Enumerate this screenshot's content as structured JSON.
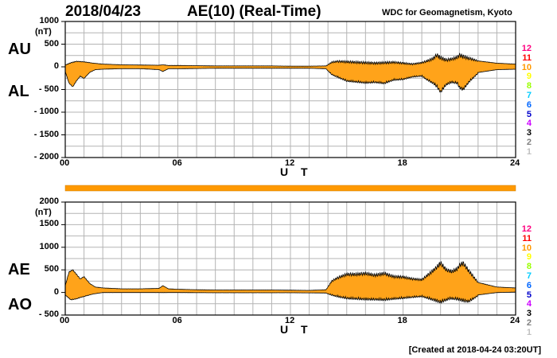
{
  "header": {
    "date": "2018/04/23",
    "title": "AE(10) (Real-Time)",
    "source": "WDC for Geomagnetism, Kyoto"
  },
  "footer": {
    "created": "[Created at 2018-04-24 03:20UT]"
  },
  "colors": {
    "fill": "#ffa31a",
    "grid": "#b4b4b4",
    "bar": "#ff9900"
  },
  "level_scale": {
    "labels": [
      "12",
      "11",
      "10",
      "9",
      "8",
      "7",
      "6",
      "5",
      "4",
      "3",
      "2",
      "1"
    ],
    "colors": [
      "#ff0080",
      "#ff0000",
      "#ff9900",
      "#ffff00",
      "#99ff00",
      "#00ccff",
      "#0066ff",
      "#0000cc",
      "#cc00ff",
      "#000000",
      "#808080",
      "#c0c0c0"
    ]
  },
  "chart_data": [
    {
      "type": "area",
      "name": "AU/AL",
      "label_upper": "AU",
      "label_lower": "AL",
      "unit": "(nT)",
      "xlabel": "U T",
      "xlim": [
        0,
        24
      ],
      "ylim": [
        -2000,
        1000
      ],
      "yticks": [
        1000,
        500,
        0,
        -500,
        -1000,
        -1500,
        -2000
      ],
      "ytick_labels": [
        "1000",
        "500",
        "0",
        "- 500",
        "- 1000",
        "- 1500",
        "- 2000"
      ],
      "xticks": [
        0,
        6,
        12,
        18,
        24
      ],
      "xtick_labels": [
        "00",
        "06",
        "12",
        "18",
        "24"
      ],
      "grid": true,
      "series": [
        {
          "name": "AU",
          "x": [
            0,
            0.3,
            0.6,
            1.0,
            1.5,
            2,
            3,
            4,
            5,
            5.2,
            5.5,
            6,
            7,
            8,
            9,
            10,
            11,
            12,
            13,
            13.9,
            14.2,
            14.5,
            15,
            15.5,
            16,
            16.5,
            17,
            17.5,
            18,
            18.5,
            19,
            19.3,
            19.6,
            19.8,
            20,
            20.3,
            20.6,
            20.9,
            21,
            21.2,
            21.5,
            22,
            23,
            24
          ],
          "values": [
            40,
            90,
            120,
            110,
            80,
            60,
            45,
            40,
            35,
            45,
            30,
            30,
            25,
            20,
            20,
            20,
            20,
            15,
            15,
            20,
            100,
            120,
            110,
            100,
            90,
            80,
            90,
            100,
            80,
            60,
            90,
            130,
            180,
            260,
            200,
            150,
            170,
            210,
            260,
            230,
            190,
            130,
            80,
            60
          ]
        },
        {
          "name": "AL",
          "x": [
            0,
            0.2,
            0.4,
            0.6,
            0.8,
            1.0,
            1.3,
            1.6,
            2,
            3,
            4,
            5,
            5.2,
            5.5,
            6,
            7,
            8,
            9,
            10,
            11,
            12,
            13,
            13.9,
            14.2,
            14.5,
            15,
            15.5,
            16,
            16.5,
            17,
            17.5,
            18,
            18.5,
            19,
            19.3,
            19.6,
            19.8,
            20,
            20.3,
            20.6,
            20.9,
            21,
            21.2,
            21.5,
            22,
            23,
            24
          ],
          "values": [
            -100,
            -350,
            -430,
            -300,
            -200,
            -250,
            -120,
            -60,
            -50,
            -40,
            -40,
            -60,
            -100,
            -40,
            -40,
            -35,
            -30,
            -30,
            -30,
            -30,
            -30,
            -30,
            -40,
            -150,
            -200,
            -280,
            -300,
            -320,
            -310,
            -330,
            -260,
            -250,
            -200,
            -180,
            -260,
            -320,
            -380,
            -500,
            -350,
            -300,
            -320,
            -400,
            -450,
            -300,
            -120,
            -60,
            -50
          ]
        }
      ]
    },
    {
      "type": "area",
      "name": "AE/AO",
      "label_upper": "AE",
      "label_lower": "AO",
      "unit": "(nT)",
      "xlabel": "U T",
      "xlim": [
        0,
        24
      ],
      "ylim": [
        -500,
        2000
      ],
      "yticks": [
        2000,
        1500,
        1000,
        500,
        0,
        -500
      ],
      "ytick_labels": [
        "2000",
        "1500",
        "1000",
        "500",
        "0",
        "- 500"
      ],
      "xticks": [
        0,
        6,
        12,
        18,
        24
      ],
      "xtick_labels": [
        "00",
        "06",
        "12",
        "18",
        "24"
      ],
      "grid": true,
      "series": [
        {
          "name": "AE",
          "x": [
            0,
            0.2,
            0.4,
            0.6,
            0.8,
            1.0,
            1.3,
            1.6,
            2,
            3,
            4,
            5,
            5.2,
            5.5,
            6,
            7,
            8,
            9,
            10,
            11,
            12,
            13,
            13.9,
            14.2,
            14.5,
            15,
            15.5,
            16,
            16.5,
            17,
            17.5,
            18,
            18.5,
            19,
            19.3,
            19.6,
            19.8,
            20,
            20.3,
            20.6,
            20.9,
            21,
            21.2,
            21.5,
            22,
            23,
            24
          ],
          "values": [
            150,
            450,
            500,
            400,
            300,
            350,
            200,
            120,
            100,
            80,
            80,
            90,
            150,
            80,
            70,
            60,
            55,
            55,
            55,
            55,
            50,
            45,
            60,
            250,
            320,
            400,
            400,
            420,
            380,
            420,
            350,
            340,
            300,
            280,
            380,
            480,
            560,
            650,
            500,
            460,
            520,
            600,
            650,
            480,
            220,
            120,
            100
          ]
        },
        {
          "name": "AO",
          "x": [
            0,
            0.3,
            0.6,
            1.0,
            1.5,
            2,
            4,
            6,
            8,
            10,
            12,
            13.9,
            14.5,
            15,
            16,
            17,
            18,
            19,
            20,
            20.5,
            21,
            21.5,
            22,
            23,
            24
          ],
          "values": [
            -50,
            -150,
            -130,
            -80,
            -30,
            0,
            0,
            0,
            -5,
            -5,
            -5,
            -10,
            -60,
            -90,
            -110,
            -120,
            -90,
            -60,
            -150,
            -90,
            -100,
            -150,
            -50,
            0,
            10
          ]
        }
      ]
    }
  ]
}
